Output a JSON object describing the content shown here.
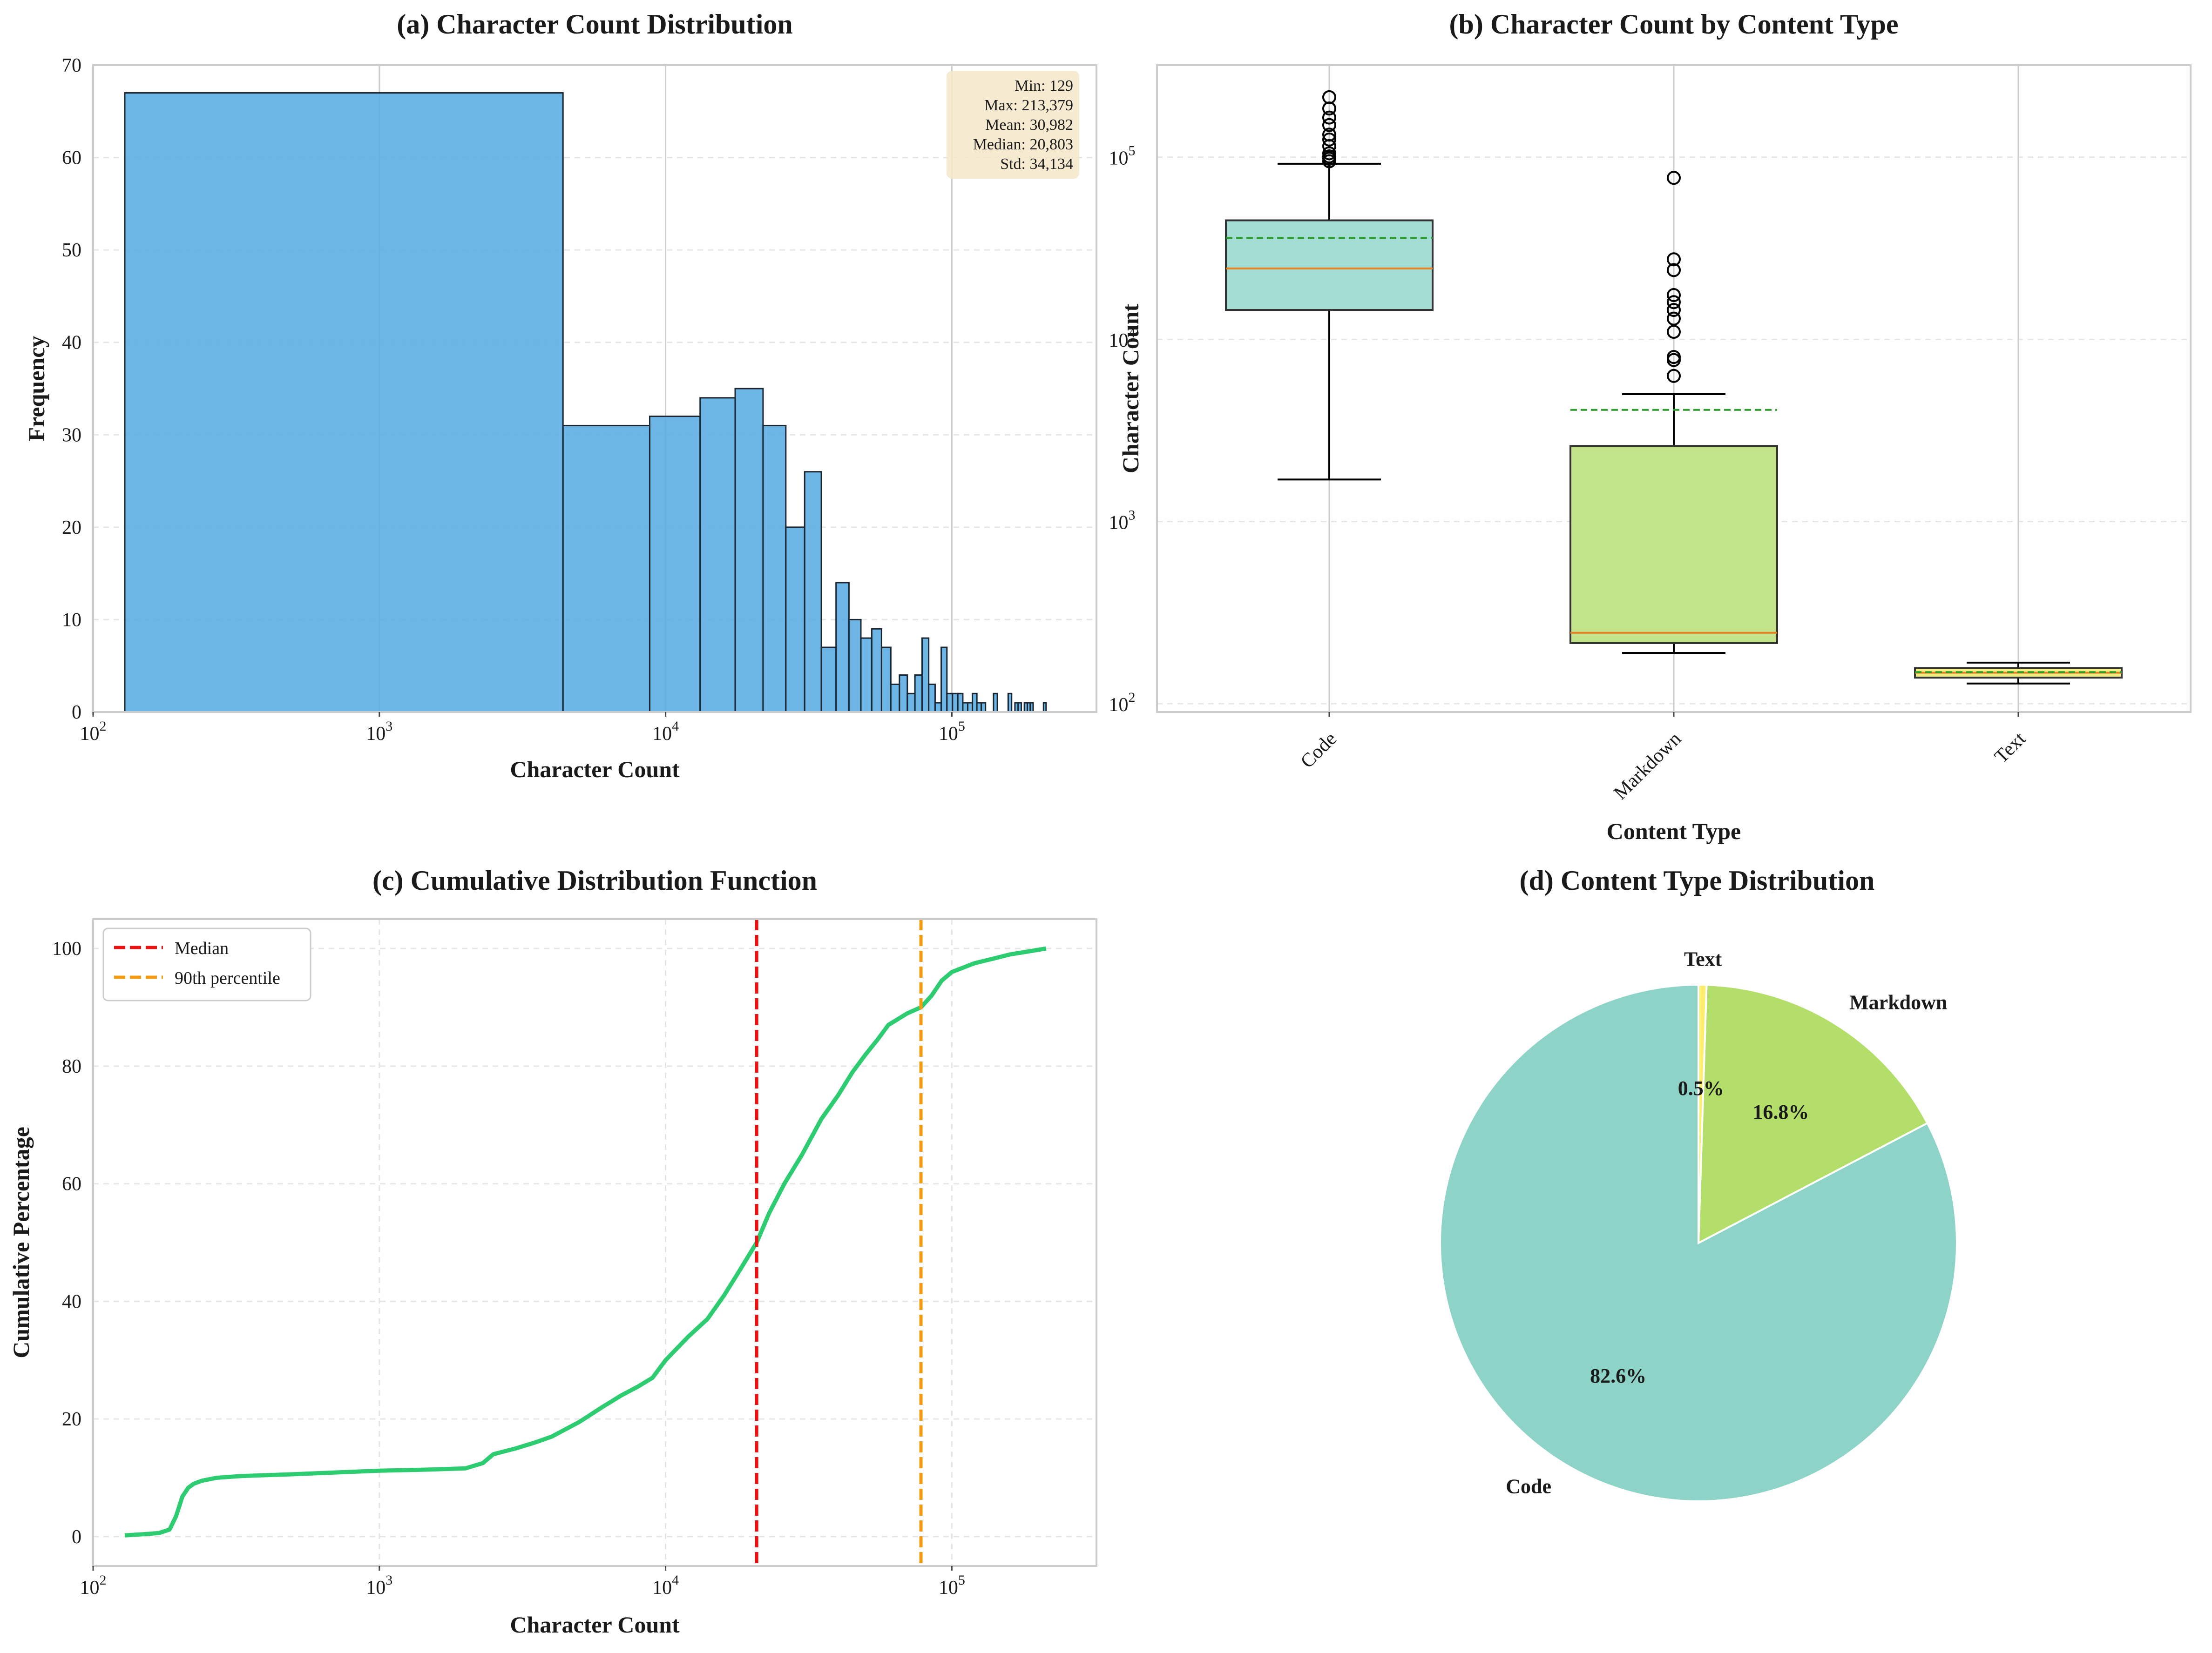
{
  "chart_data": [
    {
      "id": "a",
      "type": "bar",
      "title": "(a) Character Count Distribution",
      "xlabel": "Character Count",
      "ylabel": "Frequency",
      "xscale": "log",
      "xlim": [
        100,
        320000
      ],
      "ylim": [
        0,
        70
      ],
      "yticks": [
        0,
        10,
        20,
        30,
        40,
        50,
        60,
        70
      ],
      "xticks": [
        {
          "base": "10",
          "exp": "2"
        },
        {
          "base": "10",
          "exp": "3"
        },
        {
          "base": "10",
          "exp": "4"
        },
        {
          "base": "10",
          "exp": "5"
        }
      ],
      "bar_color": "#5DADE2",
      "bins": [
        {
          "x0": 129,
          "x1": 4380,
          "count": 67
        },
        {
          "x0": 4380,
          "x1": 8800,
          "count": 31
        },
        {
          "x0": 8800,
          "x1": 13200,
          "count": 32
        },
        {
          "x0": 13200,
          "x1": 17500,
          "count": 34
        },
        {
          "x0": 17500,
          "x1": 21900,
          "count": 35
        },
        {
          "x0": 21900,
          "x1": 26300,
          "count": 31
        },
        {
          "x0": 26300,
          "x1": 30600,
          "count": 20
        },
        {
          "x0": 30600,
          "x1": 35000,
          "count": 26
        },
        {
          "x0": 35000,
          "x1": 39400,
          "count": 7
        },
        {
          "x0": 39400,
          "x1": 43700,
          "count": 14
        },
        {
          "x0": 43700,
          "x1": 48100,
          "count": 10
        },
        {
          "x0": 48100,
          "x1": 52500,
          "count": 8
        },
        {
          "x0": 52500,
          "x1": 56800,
          "count": 9
        },
        {
          "x0": 56800,
          "x1": 61200,
          "count": 7
        },
        {
          "x0": 61200,
          "x1": 65600,
          "count": 3
        },
        {
          "x0": 65600,
          "x1": 69900,
          "count": 4
        },
        {
          "x0": 69900,
          "x1": 74300,
          "count": 2
        },
        {
          "x0": 74300,
          "x1": 78700,
          "count": 4
        },
        {
          "x0": 78700,
          "x1": 83000,
          "count": 8
        },
        {
          "x0": 83000,
          "x1": 87400,
          "count": 3
        },
        {
          "x0": 87400,
          "x1": 91800,
          "count": 1
        },
        {
          "x0": 91800,
          "x1": 96100,
          "count": 7
        },
        {
          "x0": 96100,
          "x1": 100500,
          "count": 2
        },
        {
          "x0": 100500,
          "x1": 104900,
          "count": 2
        },
        {
          "x0": 104900,
          "x1": 109200,
          "count": 2
        },
        {
          "x0": 109200,
          "x1": 113600,
          "count": 1
        },
        {
          "x0": 113600,
          "x1": 118000,
          "count": 1
        },
        {
          "x0": 118000,
          "x1": 122300,
          "count": 2
        },
        {
          "x0": 122300,
          "x1": 126700,
          "count": 1
        },
        {
          "x0": 126700,
          "x1": 131100,
          "count": 1
        },
        {
          "x0": 139800,
          "x1": 144200,
          "count": 2
        },
        {
          "x0": 157300,
          "x1": 161700,
          "count": 2
        },
        {
          "x0": 166100,
          "x1": 170400,
          "count": 1
        },
        {
          "x0": 170400,
          "x1": 174800,
          "count": 1
        },
        {
          "x0": 179200,
          "x1": 183500,
          "count": 1
        },
        {
          "x0": 183500,
          "x1": 187900,
          "count": 1
        },
        {
          "x0": 187900,
          "x1": 192300,
          "count": 1
        },
        {
          "x0": 209000,
          "x1": 213379,
          "count": 1
        }
      ],
      "stats": [
        "Min: 129",
        "Max: 213,379",
        "Mean: 30,982",
        "Median: 20,803",
        "Std: 34,134"
      ]
    },
    {
      "id": "b",
      "type": "box",
      "title": "(b) Character Count by Content Type",
      "xlabel": "Content Type",
      "ylabel": "Character Count",
      "yscale": "log",
      "ylim": [
        90,
        320000
      ],
      "yticks": [
        {
          "value": 100,
          "base": "10",
          "exp": "2"
        },
        {
          "value": 1000,
          "base": "10",
          "exp": "3"
        },
        {
          "value": 10000,
          "base": "10",
          "exp": "4"
        },
        {
          "value": 100000,
          "base": "10",
          "exp": "5"
        }
      ],
      "categories": [
        "Code",
        "Markdown",
        "Text"
      ],
      "boxes": [
        {
          "name": "Code",
          "color": "#A3DDD4",
          "whislo": 1700,
          "q1": 14500,
          "med": 24500,
          "q3": 45000,
          "whishi": 92000,
          "mean": 36000,
          "fliers": [
            95000,
            98000,
            101000,
            105000,
            115000,
            125000,
            133000,
            150000,
            165000,
            185000,
            213379
          ]
        },
        {
          "name": "Markdown",
          "color": "#C2E38A",
          "whislo": 190,
          "q1": 215,
          "med": 245,
          "q3": 2600,
          "whishi": 5000,
          "mean": 4100,
          "fliers": [
            6300,
            7700,
            8000,
            11000,
            13000,
            14500,
            16000,
            17500,
            24000,
            27500,
            77000
          ]
        },
        {
          "name": "Text",
          "color": "#F5F082",
          "whislo": 129,
          "q1": 139,
          "med": 148,
          "q3": 157,
          "whishi": 168,
          "mean": 149,
          "fliers": []
        }
      ]
    },
    {
      "id": "c",
      "type": "line",
      "title": "(c) Cumulative Distribution Function",
      "xlabel": "Character Count",
      "ylabel": "Cumulative Percentage",
      "xscale": "log",
      "xlim": [
        100,
        320000
      ],
      "ylim": [
        -5,
        105
      ],
      "yticks": [
        0,
        20,
        40,
        60,
        80,
        100
      ],
      "xticks": [
        {
          "base": "10",
          "exp": "2"
        },
        {
          "base": "10",
          "exp": "3"
        },
        {
          "base": "10",
          "exp": "4"
        },
        {
          "base": "10",
          "exp": "5"
        }
      ],
      "series": [
        {
          "name": "CDF",
          "color": "#2ECC71",
          "x": [
            129,
            150,
            170,
            185,
            195,
            205,
            215,
            225,
            240,
            270,
            330,
            500,
            700,
            1000,
            1500,
            2000,
            2300,
            2500,
            3000,
            3500,
            4000,
            5000,
            6000,
            7000,
            8000,
            9000,
            10000,
            12000,
            14000,
            16000,
            18000,
            20803,
            23000,
            26000,
            30000,
            35000,
            40000,
            45000,
            50000,
            55000,
            60000,
            70000,
            78000,
            85000,
            92000,
            100000,
            120000,
            140000,
            160000,
            185000,
            213379
          ],
          "y": [
            0.2,
            0.4,
            0.6,
            1.2,
            3.5,
            6.8,
            8.3,
            9.0,
            9.5,
            10.0,
            10.3,
            10.6,
            10.9,
            11.2,
            11.4,
            11.6,
            12.5,
            14.0,
            15.0,
            16.0,
            17.0,
            19.5,
            22.0,
            24.0,
            25.5,
            27.0,
            30.0,
            34.0,
            37.0,
            41.0,
            45.0,
            50.0,
            55.0,
            60.0,
            65.0,
            71.0,
            75.0,
            79.0,
            82.0,
            84.5,
            87.0,
            89.0,
            90.0,
            92.0,
            94.5,
            96.0,
            97.5,
            98.3,
            99.0,
            99.5,
            100.0
          ]
        },
        {
          "name": "Median",
          "color": "#EE1111",
          "x": 20803
        },
        {
          "name": "90th percentile",
          "color": "#F39C12",
          "x": 78000
        }
      ],
      "legend": [
        "Median",
        "90th percentile"
      ],
      "legend_loc": "upper-left"
    },
    {
      "id": "d",
      "type": "pie",
      "title": "(d) Content Type Distribution",
      "slices": [
        {
          "label": "Code",
          "pct_label": "82.6%",
          "value": 82.6,
          "color": "#8ED3C7"
        },
        {
          "label": "Markdown",
          "pct_label": "16.8%",
          "value": 16.8,
          "color": "#B3DE69"
        },
        {
          "label": "Text",
          "pct_label": "0.5%",
          "value": 0.5,
          "color": "#FFED6F"
        }
      ]
    }
  ]
}
